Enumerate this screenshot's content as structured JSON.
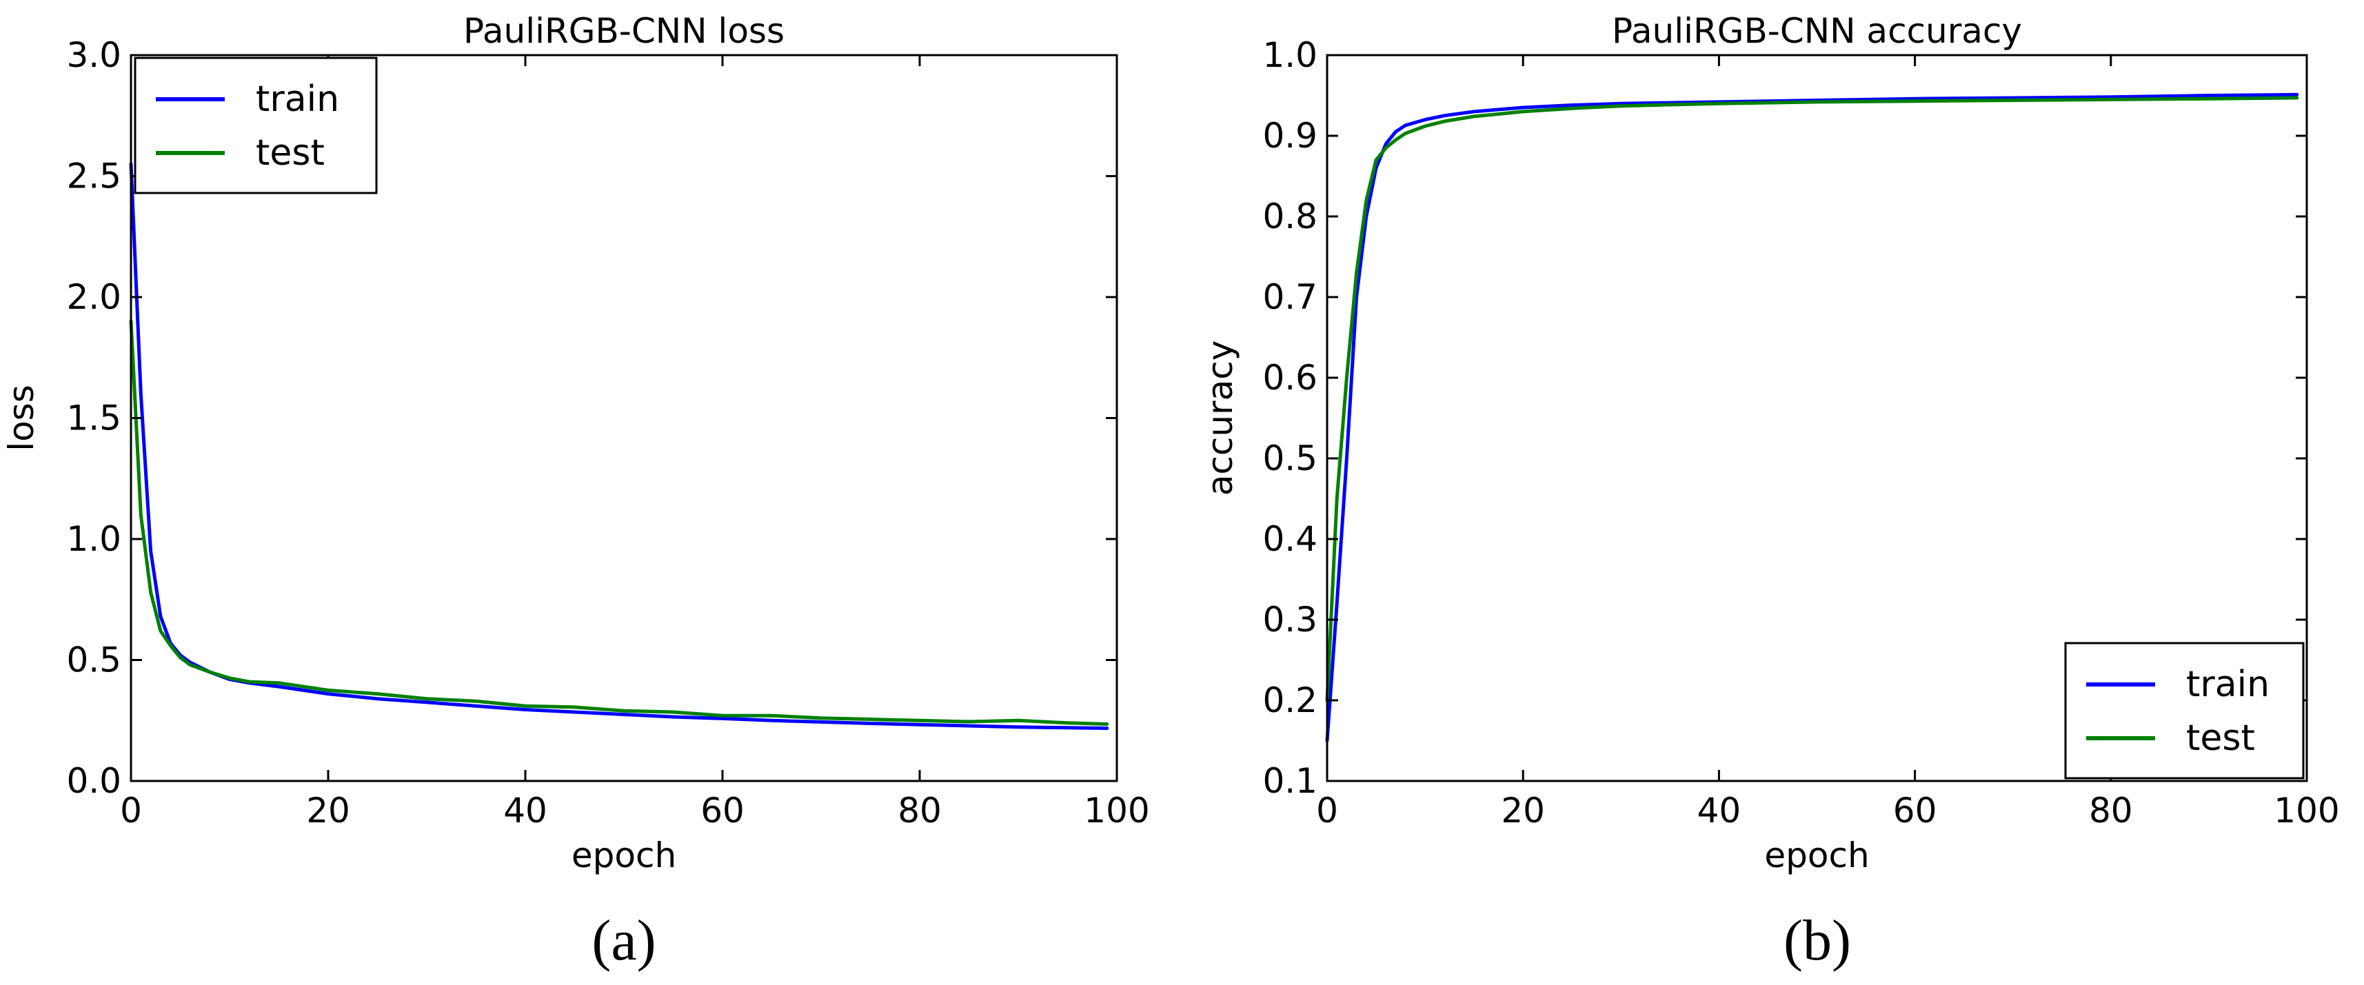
{
  "chart_data": [
    {
      "type": "line",
      "title": "PauliRGB-CNN loss",
      "xlabel": "epoch",
      "ylabel": "loss",
      "xlim": [
        0,
        100
      ],
      "ylim": [
        0.0,
        3.0
      ],
      "xticks": [
        "0",
        "20",
        "40",
        "60",
        "80",
        "100"
      ],
      "yticks": [
        "0.0",
        "0.5",
        "1.0",
        "1.5",
        "2.0",
        "2.5",
        "3.0"
      ],
      "grid": false,
      "legend_position": "upper-left",
      "caption": "(a)",
      "x": [
        0,
        1,
        2,
        3,
        4,
        5,
        6,
        8,
        10,
        12,
        15,
        20,
        25,
        30,
        35,
        40,
        45,
        50,
        55,
        60,
        65,
        70,
        75,
        80,
        85,
        90,
        95,
        99
      ],
      "series": [
        {
          "name": "train",
          "color": "#0000ff",
          "values": [
            2.55,
            1.6,
            0.95,
            0.68,
            0.57,
            0.52,
            0.49,
            0.45,
            0.42,
            0.405,
            0.39,
            0.36,
            0.34,
            0.325,
            0.31,
            0.295,
            0.285,
            0.275,
            0.265,
            0.258,
            0.25,
            0.244,
            0.238,
            0.233,
            0.228,
            0.223,
            0.22,
            0.218
          ]
        },
        {
          "name": "test",
          "color": "#008000",
          "values": [
            1.9,
            1.1,
            0.78,
            0.62,
            0.56,
            0.51,
            0.48,
            0.45,
            0.425,
            0.41,
            0.405,
            0.375,
            0.36,
            0.34,
            0.33,
            0.31,
            0.305,
            0.29,
            0.285,
            0.27,
            0.27,
            0.26,
            0.255,
            0.25,
            0.245,
            0.25,
            0.24,
            0.235
          ]
        }
      ]
    },
    {
      "type": "line",
      "title": "PauliRGB-CNN accuracy",
      "xlabel": "epoch",
      "ylabel": "accuracy",
      "xlim": [
        0,
        100
      ],
      "ylim": [
        0.1,
        1.0
      ],
      "xticks": [
        "0",
        "20",
        "40",
        "60",
        "80",
        "100"
      ],
      "yticks": [
        "0.1",
        "0.2",
        "0.3",
        "0.4",
        "0.5",
        "0.6",
        "0.7",
        "0.8",
        "0.9",
        "1.0"
      ],
      "grid": false,
      "legend_position": "lower-right",
      "caption": "(b)",
      "x": [
        0,
        1,
        2,
        3,
        4,
        5,
        6,
        7,
        8,
        10,
        12,
        15,
        20,
        25,
        30,
        40,
        50,
        60,
        70,
        80,
        90,
        99
      ],
      "series": [
        {
          "name": "train",
          "color": "#0000ff",
          "values": [
            0.15,
            0.32,
            0.5,
            0.7,
            0.8,
            0.86,
            0.89,
            0.905,
            0.913,
            0.92,
            0.925,
            0.93,
            0.935,
            0.938,
            0.94,
            0.942,
            0.944,
            0.946,
            0.947,
            0.948,
            0.95,
            0.951
          ]
        },
        {
          "name": "test",
          "color": "#008000",
          "values": [
            0.2,
            0.45,
            0.6,
            0.73,
            0.82,
            0.87,
            0.885,
            0.895,
            0.903,
            0.912,
            0.918,
            0.924,
            0.93,
            0.934,
            0.937,
            0.94,
            0.942,
            0.943,
            0.944,
            0.945,
            0.946,
            0.947
          ]
        }
      ]
    }
  ]
}
